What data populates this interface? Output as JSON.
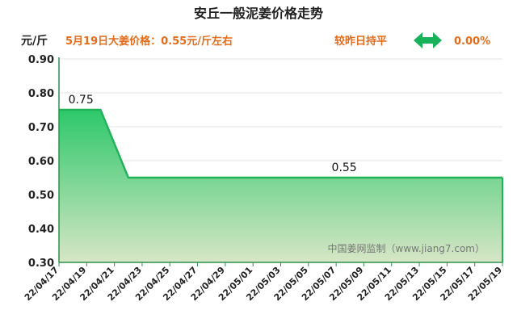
{
  "title": "安丘一般泥姜价格走势",
  "unit_label": "元/斤",
  "price_text": "5月19日大姜价格：0.55元/斤左右",
  "compare_label": "较昨日持平",
  "compare_icon": "double-arrow-icon",
  "compare_value": "0.00%",
  "watermark": "中国姜网监制（www.jiang7.com）",
  "colors": {
    "fill_top": "#2dc86a",
    "fill_bottom": "#d7e6c6",
    "line": "#22b35a",
    "axis": "#2f8f4e",
    "price_text": "#e46c1a",
    "arrow": "#18b25a"
  },
  "chart_data": {
    "type": "area",
    "title": "安丘一般泥姜价格走势",
    "ylabel": "元/斤",
    "xlabel": "",
    "ylim": [
      0.3,
      0.9
    ],
    "yticks": [
      "0.30",
      "0.40",
      "0.50",
      "0.60",
      "0.70",
      "0.80",
      "0.90"
    ],
    "xticks": [
      "22/04/17",
      "22/04/19",
      "22/04/21",
      "22/04/23",
      "22/04/25",
      "22/04/27",
      "22/04/29",
      "22/05/01",
      "22/05/03",
      "22/05/05",
      "22/05/07",
      "22/05/09",
      "22/05/11",
      "22/05/13",
      "22/05/15",
      "22/05/17",
      "22/05/19"
    ],
    "x_start": "22/04/17",
    "x_end": "22/05/19",
    "points": [
      {
        "x": "22/04/17",
        "y": 0.75
      },
      {
        "x": "22/04/20",
        "y": 0.75
      },
      {
        "x": "22/04/22",
        "y": 0.55
      },
      {
        "x": "22/05/19",
        "y": 0.55
      }
    ],
    "data_labels": [
      {
        "x": "22/04/18",
        "text": "0.75",
        "y": 0.75
      },
      {
        "x": "22/05/07",
        "text": "0.55",
        "y": 0.55
      }
    ],
    "grid": true,
    "legend": "none"
  }
}
